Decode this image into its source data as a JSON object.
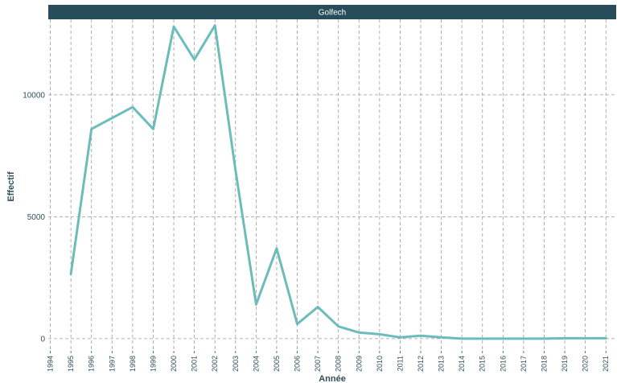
{
  "chart_data": {
    "type": "line",
    "facet_label": "Golfech",
    "xlabel": "Année",
    "ylabel": "Effectif",
    "x_ticks": [
      "1994",
      "1995",
      "1996",
      "1997",
      "1998",
      "1999",
      "2000",
      "2001",
      "2002",
      "2003",
      "2004",
      "2005",
      "2006",
      "2007",
      "2008",
      "2009",
      "2010",
      "2011",
      "2012",
      "2013",
      "2014",
      "2015",
      "2016",
      "2017",
      "2018",
      "2019",
      "2020",
      "2021"
    ],
    "y_ticks": [
      "0",
      "5000",
      "10000"
    ],
    "xlim": [
      1993.9,
      2021.5
    ],
    "ylim": [
      -500,
      13100
    ],
    "grid": true,
    "series": [
      {
        "color": "#6cbcbc",
        "x": [
          1995,
          1996,
          1997,
          1998,
          1999,
          2000,
          2001,
          2002,
          2003,
          2004,
          2005,
          2006,
          2007,
          2008,
          2009,
          2010,
          2011,
          2012,
          2013,
          2014,
          2015,
          2016,
          2017,
          2018,
          2019,
          2020,
          2021
        ],
        "y": [
          2650,
          8600,
          9050,
          9500,
          8600,
          12800,
          11450,
          12850,
          6900,
          1400,
          3700,
          600,
          1300,
          500,
          250,
          180,
          50,
          120,
          50,
          0,
          0,
          0,
          0,
          0,
          15,
          15,
          15
        ]
      }
    ],
    "colors": {
      "strip_bg": "#264d59",
      "grid": "#9a9a9a",
      "axis_text": "#2f4f5a"
    }
  }
}
